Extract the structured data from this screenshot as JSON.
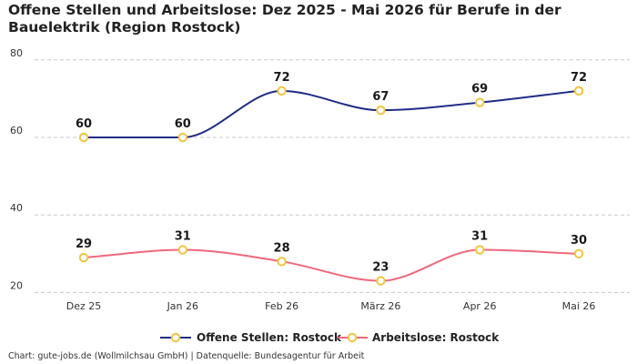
{
  "title": "Offene Stellen und Arbeitslose: Dez 2025 - Mai 2026 für Berufe in der Bauelektrik (Region Rostock)",
  "source": "Chart: gute-jobs.de (Wollmilchsau GmbH) | Datenquelle: Bundesagentur für Arbeit",
  "colors": {
    "marker_fill": "#ffffff",
    "marker_stroke": "#f2c53d",
    "grid": "#c8c8c8"
  },
  "chart_data": {
    "type": "line",
    "categories": [
      "Dez 25",
      "Jan 26",
      "Feb 26",
      "März 26",
      "Apr 26",
      "Mai 26"
    ],
    "series": [
      {
        "name": "Offene Stellen: Rostock",
        "values": [
          60,
          60,
          72,
          67,
          69,
          72
        ],
        "color": "#1f2d86"
      },
      {
        "name": "Arbeitslose: Rostock",
        "values": [
          29,
          31,
          28,
          23,
          31,
          30
        ],
        "color": "#f0677d"
      }
    ],
    "yticks": [
      20,
      40,
      60,
      80
    ],
    "ylim": [
      18.5,
      83
    ],
    "grid": true,
    "smooth": true,
    "data_labels": true,
    "legend_position": "bottom-center"
  }
}
